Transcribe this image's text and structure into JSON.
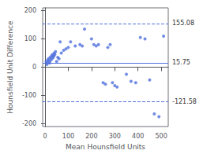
{
  "chart_data": {
    "type": "scatter",
    "xlabel": "Mean Hounsfield Units",
    "ylabel": "Hounsfield Unit Difference",
    "x": [
      5,
      8,
      10,
      12,
      15,
      18,
      20,
      22,
      25,
      28,
      30,
      32,
      35,
      38,
      40,
      42,
      45,
      50,
      55,
      60,
      65,
      70,
      80,
      90,
      100,
      110,
      130,
      150,
      160,
      170,
      200,
      210,
      220,
      230,
      250,
      260,
      270,
      280,
      290,
      300,
      310,
      350,
      370,
      390,
      410,
      430,
      450,
      470,
      490,
      510
    ],
    "values": [
      20,
      10,
      15,
      25,
      30,
      20,
      15,
      35,
      25,
      40,
      30,
      45,
      35,
      40,
      50,
      45,
      55,
      20,
      35,
      30,
      90,
      50,
      60,
      65,
      70,
      90,
      75,
      80,
      75,
      135,
      100,
      80,
      75,
      80,
      -55,
      -60,
      70,
      80,
      -55,
      -65,
      -70,
      -25,
      -50,
      -55,
      105,
      100,
      -45,
      -165,
      -175,
      110
    ],
    "xlim": [
      -10,
      530
    ],
    "ylim": [
      -210,
      210
    ],
    "xticks": [
      0,
      100,
      200,
      300,
      400,
      500
    ],
    "yticks": [
      -200,
      -100,
      0,
      100,
      200
    ],
    "grid": false,
    "hlines": [
      {
        "value": 155.08,
        "label": "155.08",
        "line_style": "dashed"
      },
      {
        "value": 15.75,
        "label": "15.75",
        "line_style": "solid"
      },
      {
        "value": -121.58,
        "label": "-121.58",
        "line_style": "dashed"
      }
    ]
  }
}
